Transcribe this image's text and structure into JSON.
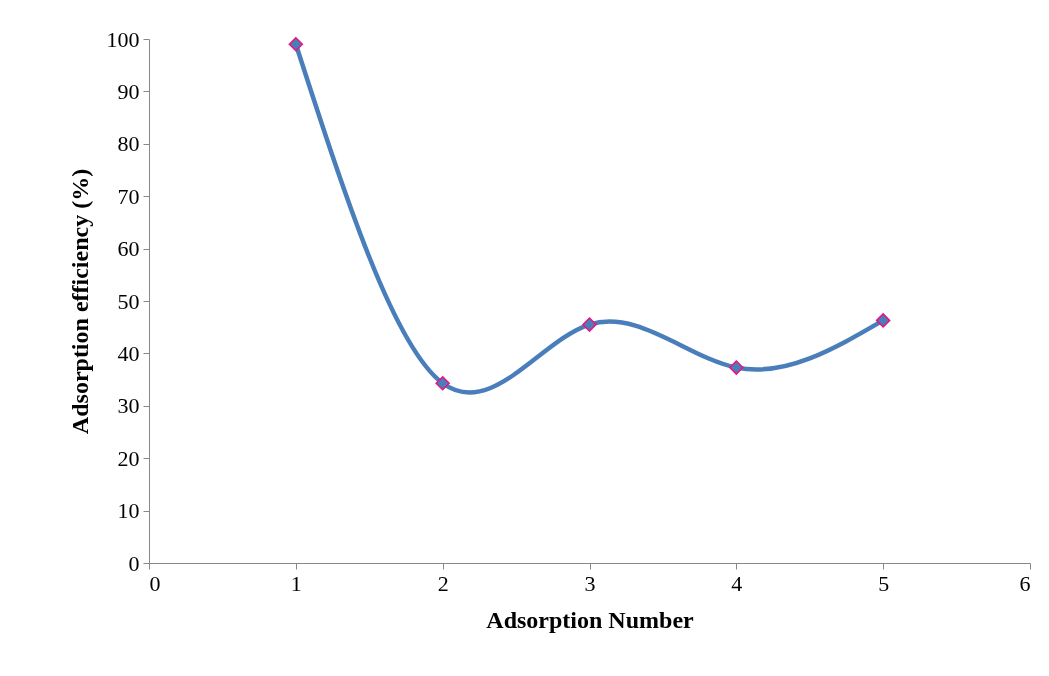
{
  "chart_data": {
    "type": "line",
    "xlabel": "Adsorption Number",
    "ylabel": "Adsorption efficiency (%)",
    "x": [
      1,
      2,
      3,
      4,
      5
    ],
    "series": [
      {
        "color": "#4a7ebb",
        "values": [
          99,
          34.3,
          45.5,
          37.3,
          46.3
        ]
      }
    ],
    "xlim": [
      0,
      6
    ],
    "xticks": [
      0,
      1,
      2,
      3,
      4,
      5,
      6
    ],
    "ylim": [
      0,
      100
    ],
    "yticks": [
      0,
      10,
      20,
      30,
      40,
      50,
      60,
      70,
      80,
      90,
      100
    ],
    "marker": "diamond"
  }
}
